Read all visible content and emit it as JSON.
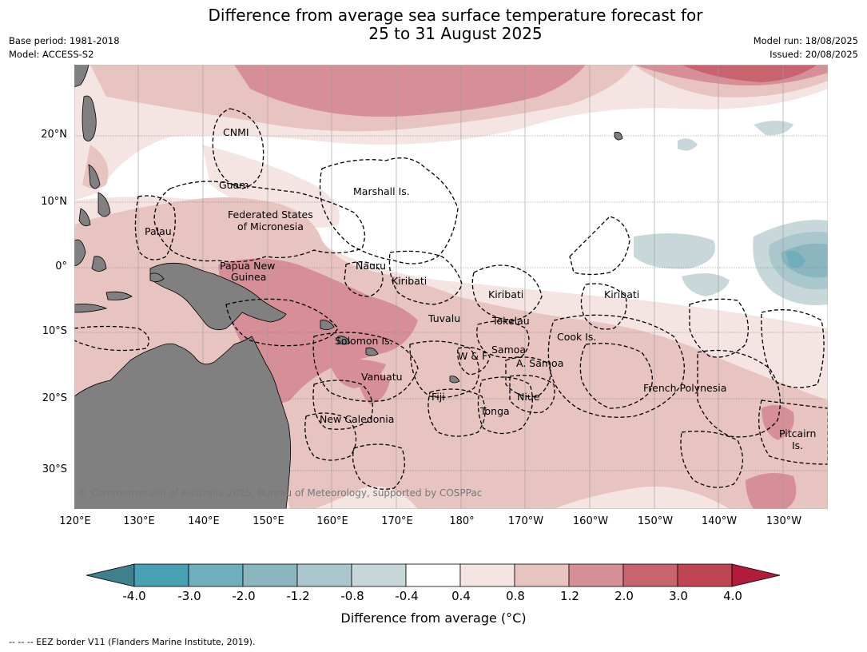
{
  "title": {
    "line1": "Difference from average sea surface temperature forecast for",
    "line2": "25 to 31 August 2025"
  },
  "meta": {
    "base_period": "Base period: 1981-2018",
    "model": "Model: ACCESS-S2",
    "model_run": "Model run: 18/08/2025",
    "issued": "Issued: 20/08/2025"
  },
  "axes": {
    "lat_labels": [
      "20°N",
      "10°N",
      "0°",
      "10°S",
      "20°S",
      "30°S"
    ],
    "lon_labels": [
      "120°E",
      "130°E",
      "140°E",
      "150°E",
      "160°E",
      "170°E",
      "180°",
      "170°W",
      "160°W",
      "150°W",
      "140°W",
      "130°W"
    ]
  },
  "places": {
    "cnmi": "CNMI",
    "guam": "Guam",
    "marshall": "Marshall Is.",
    "fsm_1": "Federated States",
    "fsm_2": "of Micronesia",
    "palau": "Palau",
    "nauru": "Nauru",
    "png_1": "Papua New",
    "png_2": "Guinea",
    "kiribati_w": "Kiribati",
    "kiribati_c": "Kiribati",
    "kiribati_e": "Kiribati",
    "tuvalu": "Tuvalu",
    "tokelau": "Tokelau",
    "cook": "Cook Is.",
    "solomon": "Solomon Is.",
    "samoa": "Samoa",
    "wf": "W & F",
    "asamoa": "A. Samoa",
    "vanuatu": "Vanuatu",
    "fiji": "Fiji",
    "niue": "Niue",
    "french_polynesia": "French Polynesia",
    "tonga": "Tonga",
    "new_caledonia": "New Caledonia",
    "pitcairn_1": "Pitcairn",
    "pitcairn_2": "Is."
  },
  "copyright": "© Commonwealth of Australia 2025, Bureau of Meteorology, supported by COSPPac",
  "colorbar": {
    "label": "Difference from average (°C)",
    "ticks": [
      "-4.0",
      "-3.0",
      "-2.0",
      "-1.2",
      "-0.8",
      "-0.4",
      "0.4",
      "0.8",
      "1.2",
      "2.0",
      "3.0",
      "4.0"
    ],
    "colors": [
      "#3e818c",
      "#4aa0b3",
      "#6fafbc",
      "#8bb6c0",
      "#a9c7cc",
      "#c7d7da",
      "#ffffff",
      "#f4e5e3",
      "#e8c4c1",
      "#d78f97",
      "#c9646f",
      "#c04553",
      "#b21b3a"
    ]
  },
  "footer": "-- -- -- EEZ border V11 (Flanders Marine Institute, 2019)."
}
